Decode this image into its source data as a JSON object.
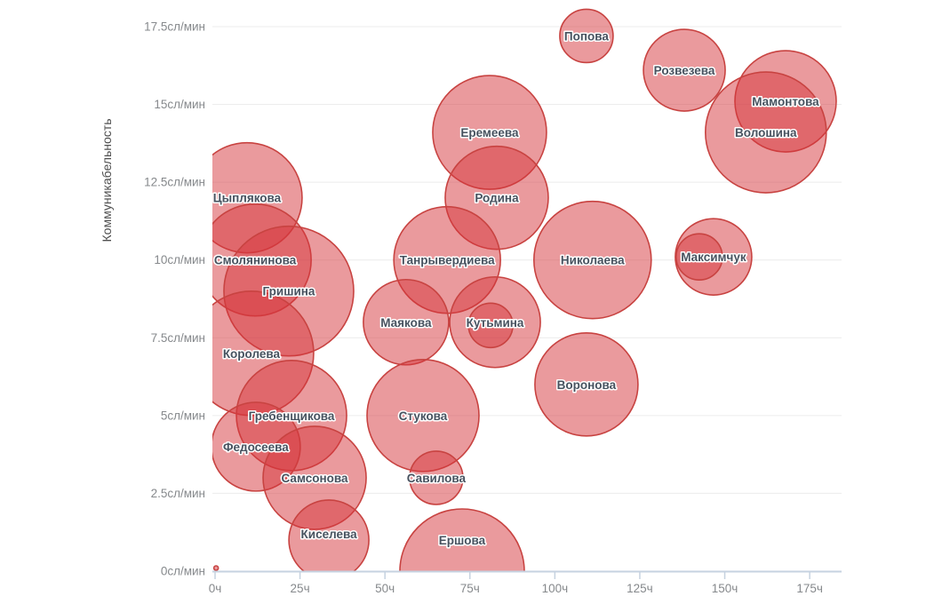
{
  "chart_data": {
    "type": "scatter",
    "subtype": "bubble",
    "title": "",
    "xlabel": "",
    "ylabel": "Коммуникабельность",
    "x_unit": "ч",
    "y_unit": "сл/мин",
    "xlim": [
      0,
      184
    ],
    "ylim": [
      0,
      17.5
    ],
    "grid": true,
    "legend": false,
    "x_ticks": [
      {
        "v": 0,
        "label": "0ч"
      },
      {
        "v": 25,
        "label": "25ч"
      },
      {
        "v": 50,
        "label": "50ч"
      },
      {
        "v": 75,
        "label": "75ч"
      },
      {
        "v": 100,
        "label": "100ч"
      },
      {
        "v": 125,
        "label": "125ч"
      },
      {
        "v": 150,
        "label": "150ч"
      },
      {
        "v": 175,
        "label": "175ч"
      }
    ],
    "y_ticks": [
      {
        "v": 0,
        "label": "0сл/мин"
      },
      {
        "v": 2.5,
        "label": "2.5сл/мин"
      },
      {
        "v": 5,
        "label": "5сл/мин"
      },
      {
        "v": 7.5,
        "label": "7.5сл/мин"
      },
      {
        "v": 10,
        "label": "10сл/мин"
      },
      {
        "v": 12.5,
        "label": "12.5сл/мин"
      },
      {
        "v": 15,
        "label": "15сл/мин"
      },
      {
        "v": 17.5,
        "label": "17.5сл/мин"
      }
    ],
    "colors": {
      "bubble_fill": "#d5353b",
      "bubble_fill_opacity": 0.5,
      "bubble_stroke": "#c84341",
      "grid": "#ececec",
      "axis": "#c6d2e0",
      "tick_label": "#86898c",
      "axis_title": "#4f4f4f",
      "bubble_label": "#47525f"
    },
    "points": [
      {
        "name": "Попова",
        "x": 109.3,
        "y": 17.2,
        "r": 30
      },
      {
        "name": "Розвезева",
        "x": 138.1,
        "y": 16.1,
        "r": 46
      },
      {
        "name": "Мамонтова",
        "x": 167.9,
        "y": 15.1,
        "r": 57
      },
      {
        "name": "Волошина",
        "x": 162.1,
        "y": 14.1,
        "r": 68
      },
      {
        "name": "Еремеева",
        "x": 80.8,
        "y": 14.1,
        "r": 64
      },
      {
        "name": "Родина",
        "x": 82.9,
        "y": 12.0,
        "r": 58
      },
      {
        "name": "Цыплякова",
        "x": 9.4,
        "y": 12.0,
        "r": 62
      },
      {
        "name": "Смолянинова",
        "x": 11.8,
        "y": 10.0,
        "r": 63
      },
      {
        "name": "Танрывердиева",
        "x": 68.3,
        "y": 10.0,
        "r": 60
      },
      {
        "name": "Николаева",
        "x": 111.1,
        "y": 10.0,
        "r": 66
      },
      {
        "name": "Максимчук",
        "x": 146.7,
        "y": 10.1,
        "r": 43
      },
      {
        "name": "",
        "x": 142.5,
        "y": 10.1,
        "r": 26
      },
      {
        "name": "Гришина",
        "x": 21.7,
        "y": 9.0,
        "r": 73
      },
      {
        "name": "Маякова",
        "x": 56.2,
        "y": 8.0,
        "r": 48
      },
      {
        "name": "Кутьмина",
        "x": 82.4,
        "y": 8.0,
        "r": 51
      },
      {
        "name": "",
        "x": 81.1,
        "y": 7.9,
        "r": 25
      },
      {
        "name": "Королева",
        "x": 10.7,
        "y": 7.0,
        "r": 70
      },
      {
        "name": "Воронова",
        "x": 109.3,
        "y": 6.0,
        "r": 58
      },
      {
        "name": "Гребенщикова",
        "x": 22.5,
        "y": 5.0,
        "r": 62
      },
      {
        "name": "Стукова",
        "x": 61.2,
        "y": 5.0,
        "r": 63
      },
      {
        "name": "Федосеева",
        "x": 12.0,
        "y": 4.0,
        "r": 50
      },
      {
        "name": "Самсонова",
        "x": 29.3,
        "y": 3.0,
        "r": 58
      },
      {
        "name": "Савилова",
        "x": 65.1,
        "y": 3.0,
        "r": 30
      },
      {
        "name": "Киселева",
        "x": 33.5,
        "y": 1.0,
        "r": 45,
        "ldy": -7
      },
      {
        "name": "Ершова",
        "x": 72.7,
        "y": 0.0,
        "r": 70,
        "ldy": -35
      },
      {
        "name": "",
        "x": 0.3,
        "y": 0.1,
        "r": 2.5
      }
    ]
  }
}
